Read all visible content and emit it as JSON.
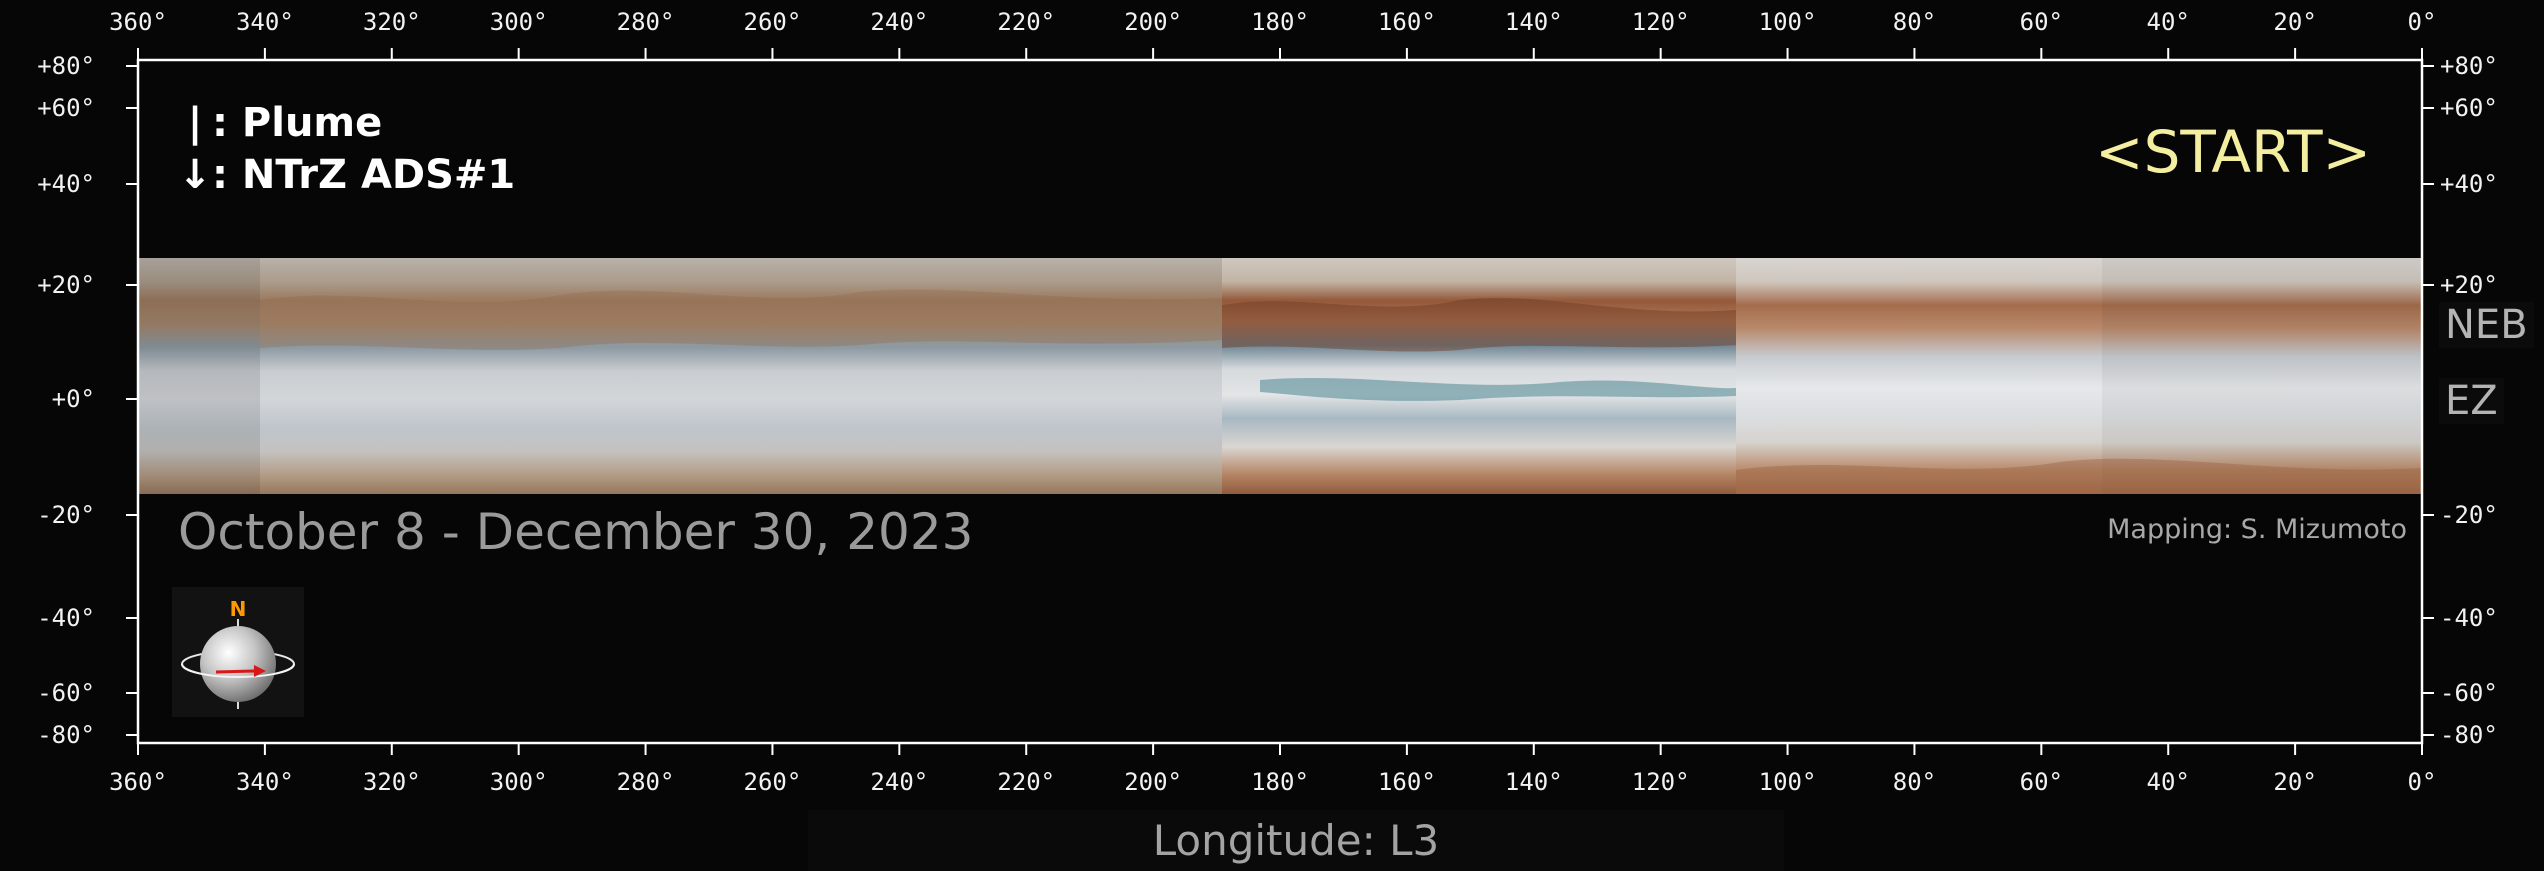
{
  "map": {
    "type": "cylindrical-projection",
    "longitude_ticks": [
      "360°",
      "340°",
      "320°",
      "300°",
      "280°",
      "260°",
      "240°",
      "220°",
      "200°",
      "180°",
      "160°",
      "140°",
      "120°",
      "100°",
      "80°",
      "60°",
      "40°",
      "20°",
      "0°"
    ],
    "latitude_ticks": [
      "+80°",
      "+60°",
      "+40°",
      "+20°",
      "+0°",
      "-20°",
      "-40°",
      "-60°",
      "-80°"
    ],
    "right_latitude_ticks": [
      "+80°",
      "+60°",
      "+40°",
      "+20°",
      "-20°",
      "-40°",
      "-60°",
      "-80°"
    ],
    "longitude_range": [
      360,
      0
    ],
    "latitude_range": [
      90,
      -90
    ],
    "image_band_latitude": [
      25,
      -20
    ],
    "axis_color": "#ffffff",
    "background_color": "#060606"
  },
  "legend": {
    "plume_symbol": "|",
    "plume_label": ": Plume",
    "ads_symbol": "↓",
    "ads_label": ": NTrZ ADS#1"
  },
  "start_label": "<START>",
  "start_color": "#f3eea0",
  "date_range": "October 8 - December 30, 2023",
  "credit": "Mapping: S. Mizumoto",
  "belt_labels": {
    "neb": "NEB",
    "ez": "EZ"
  },
  "x_axis_title": "Longitude: L3",
  "globe": {
    "north_label": "N",
    "north_color": "#ff9900",
    "arrow_color": "#d81818"
  }
}
